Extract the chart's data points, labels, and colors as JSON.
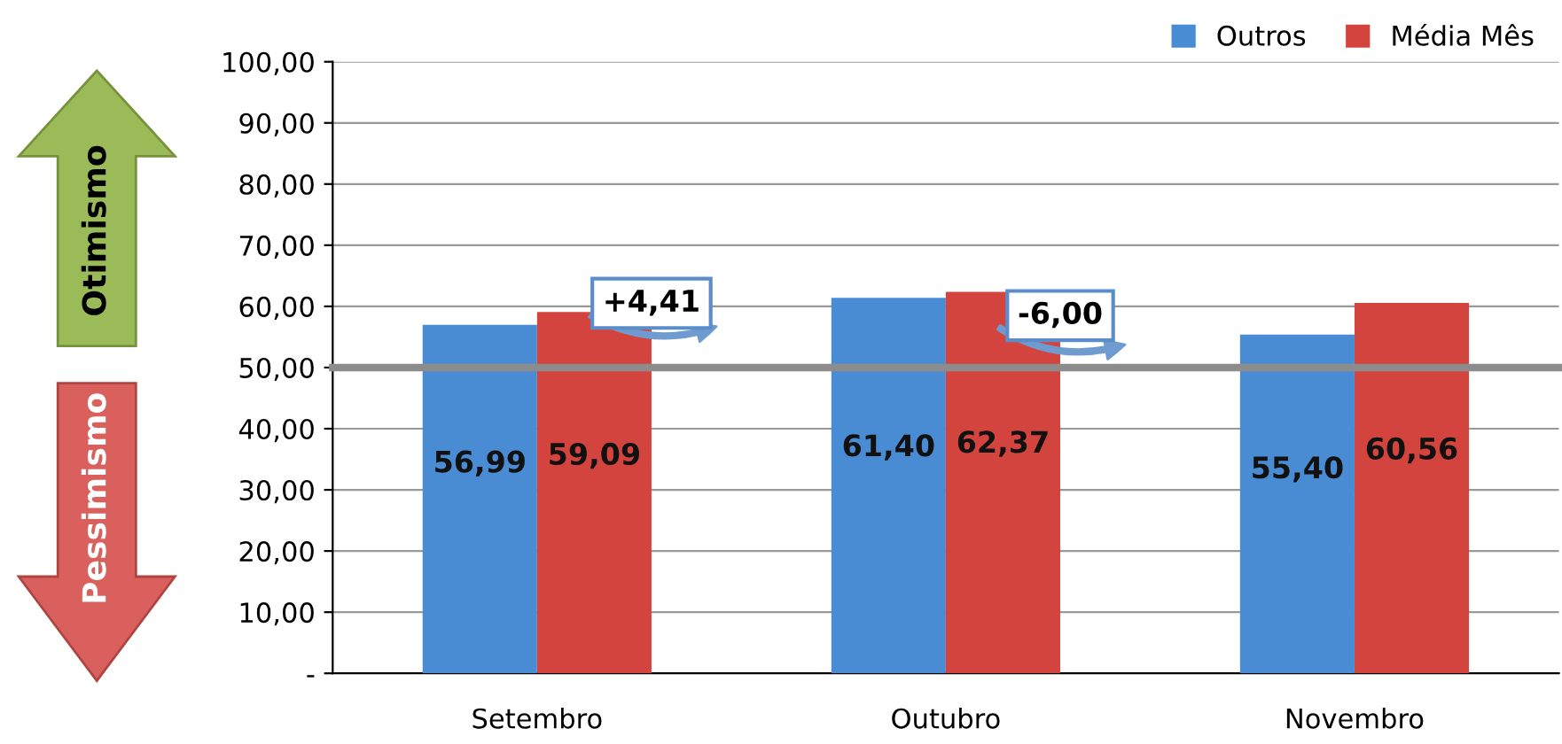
{
  "chart_data": {
    "type": "bar",
    "categories": [
      "Setembro",
      "Outubro",
      "Novembro"
    ],
    "series": [
      {
        "name": "Outros",
        "color": "#4a8cd3",
        "values": [
          56.99,
          61.4,
          55.4
        ],
        "value_labels": [
          "56,99",
          "61,40",
          "55,40"
        ]
      },
      {
        "name": "Média Mês",
        "color": "#d4443f",
        "values": [
          59.09,
          62.37,
          60.56
        ],
        "value_labels": [
          "59,09",
          "62,37",
          "60,56"
        ]
      }
    ],
    "ylim": [
      0,
      100
    ],
    "yticks": [
      {
        "value": 0,
        "label": "-"
      },
      {
        "value": 10,
        "label": "10,00"
      },
      {
        "value": 20,
        "label": "20,00"
      },
      {
        "value": 30,
        "label": "30,00"
      },
      {
        "value": 40,
        "label": "40,00"
      },
      {
        "value": 50,
        "label": "50,00"
      },
      {
        "value": 60,
        "label": "60,00"
      },
      {
        "value": 70,
        "label": "70,00"
      },
      {
        "value": 80,
        "label": "80,00"
      },
      {
        "value": 90,
        "label": "90,00"
      },
      {
        "value": 100,
        "label": "100,00"
      }
    ],
    "grid": "y",
    "legend": "top right",
    "ref_lines": [
      {
        "axis": "y",
        "value": 50,
        "color": "#8c8c8c"
      }
    ],
    "annotations": [
      "+4,41",
      "-6,00",
      "Otimismo",
      "Pessimismo"
    ]
  }
}
